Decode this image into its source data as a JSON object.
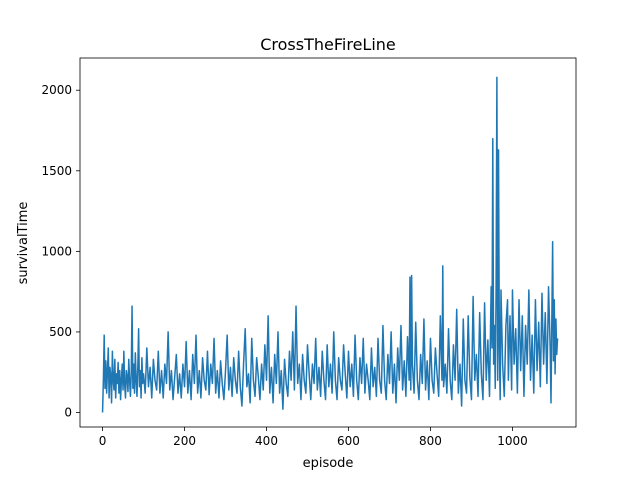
{
  "chart_data": {
    "type": "line",
    "title": "CrossTheFireLine",
    "xlabel": "episode",
    "ylabel": "survivalTime",
    "xlim": [
      -55,
      1155
    ],
    "ylim": [
      -90,
      2200
    ],
    "xticks": [
      0,
      200,
      400,
      600,
      800,
      1000
    ],
    "yticks": [
      0,
      500,
      1000,
      1500,
      2000
    ],
    "grid": false,
    "legend": "none",
    "series": [
      {
        "color": "#1f77b4",
        "points": [
          [
            0,
            0
          ],
          [
            2,
            200
          ],
          [
            4,
            480
          ],
          [
            6,
            150
          ],
          [
            8,
            320
          ],
          [
            10,
            120
          ],
          [
            12,
            260
          ],
          [
            14,
            400
          ],
          [
            16,
            90
          ],
          [
            18,
            280
          ],
          [
            20,
            230
          ],
          [
            22,
            60
          ],
          [
            24,
            380
          ],
          [
            26,
            200
          ],
          [
            28,
            140
          ],
          [
            30,
            330
          ],
          [
            32,
            90
          ],
          [
            34,
            240
          ],
          [
            36,
            180
          ],
          [
            38,
            310
          ],
          [
            40,
            120
          ],
          [
            42,
            260
          ],
          [
            44,
            80
          ],
          [
            46,
            200
          ],
          [
            48,
            300
          ],
          [
            50,
            140
          ],
          [
            52,
            380
          ],
          [
            54,
            170
          ],
          [
            56,
            90
          ],
          [
            58,
            260
          ],
          [
            60,
            220
          ],
          [
            62,
            130
          ],
          [
            64,
            330
          ],
          [
            66,
            200
          ],
          [
            68,
            100
          ],
          [
            70,
            240
          ],
          [
            72,
            660
          ],
          [
            74,
            150
          ],
          [
            76,
            300
          ],
          [
            78,
            120
          ],
          [
            80,
            370
          ],
          [
            82,
            200
          ],
          [
            84,
            100
          ],
          [
            86,
            280
          ],
          [
            88,
            520
          ],
          [
            90,
            160
          ],
          [
            92,
            260
          ],
          [
            94,
            90
          ],
          [
            96,
            340
          ],
          [
            98,
            180
          ],
          [
            100,
            240
          ],
          [
            104,
            120
          ],
          [
            108,
            400
          ],
          [
            112,
            160
          ],
          [
            116,
            280
          ],
          [
            120,
            90
          ],
          [
            124,
            330
          ],
          [
            128,
            200
          ],
          [
            132,
            140
          ],
          [
            136,
            380
          ],
          [
            140,
            120
          ],
          [
            144,
            260
          ],
          [
            148,
            90
          ],
          [
            152,
            300
          ],
          [
            156,
            180
          ],
          [
            160,
            500
          ],
          [
            164,
            140
          ],
          [
            168,
            260
          ],
          [
            172,
            80
          ],
          [
            176,
            220
          ],
          [
            180,
            360
          ],
          [
            184,
            120
          ],
          [
            188,
            240
          ],
          [
            192,
            90
          ],
          [
            196,
            300
          ],
          [
            200,
            160
          ],
          [
            204,
            440
          ],
          [
            208,
            120
          ],
          [
            212,
            260
          ],
          [
            216,
            80
          ],
          [
            220,
            360
          ],
          [
            224,
            180
          ],
          [
            228,
            480
          ],
          [
            232,
            120
          ],
          [
            236,
            260
          ],
          [
            240,
            90
          ],
          [
            244,
            340
          ],
          [
            248,
            200
          ],
          [
            252,
            140
          ],
          [
            256,
            380
          ],
          [
            260,
            110
          ],
          [
            264,
            300
          ],
          [
            268,
            180
          ],
          [
            272,
            460
          ],
          [
            276,
            120
          ],
          [
            280,
            260
          ],
          [
            284,
            90
          ],
          [
            288,
            320
          ],
          [
            292,
            180
          ],
          [
            296,
            80
          ],
          [
            300,
            260
          ],
          [
            304,
            480
          ],
          [
            308,
            140
          ],
          [
            312,
            280
          ],
          [
            316,
            100
          ],
          [
            320,
            340
          ],
          [
            324,
            200
          ],
          [
            328,
            120
          ],
          [
            332,
            380
          ],
          [
            336,
            160
          ],
          [
            340,
            40
          ],
          [
            344,
            300
          ],
          [
            348,
            520
          ],
          [
            352,
            160
          ],
          [
            356,
            240
          ],
          [
            360,
            60
          ],
          [
            364,
            460
          ],
          [
            368,
            200
          ],
          [
            372,
            100
          ],
          [
            376,
            340
          ],
          [
            380,
            220
          ],
          [
            384,
            80
          ],
          [
            388,
            300
          ],
          [
            392,
            140
          ],
          [
            396,
            420
          ],
          [
            400,
            200
          ],
          [
            404,
            600
          ],
          [
            408,
            120
          ],
          [
            412,
            280
          ],
          [
            416,
            60
          ],
          [
            420,
            360
          ],
          [
            424,
            180
          ],
          [
            428,
            500
          ],
          [
            432,
            120
          ],
          [
            436,
            260
          ],
          [
            440,
            20
          ],
          [
            444,
            330
          ],
          [
            448,
            180
          ],
          [
            452,
            100
          ],
          [
            456,
            380
          ],
          [
            460,
            200
          ],
          [
            464,
            500
          ],
          [
            468,
            140
          ],
          [
            472,
            660
          ],
          [
            476,
            180
          ],
          [
            480,
            300
          ],
          [
            484,
            80
          ],
          [
            488,
            360
          ],
          [
            492,
            200
          ],
          [
            496,
            120
          ],
          [
            500,
            420
          ],
          [
            504,
            240
          ],
          [
            508,
            80
          ],
          [
            512,
            300
          ],
          [
            516,
            180
          ],
          [
            520,
            460
          ],
          [
            524,
            140
          ],
          [
            528,
            280
          ],
          [
            532,
            100
          ],
          [
            536,
            380
          ],
          [
            540,
            200
          ],
          [
            544,
            80
          ],
          [
            548,
            420
          ],
          [
            552,
            160
          ],
          [
            556,
            300
          ],
          [
            560,
            120
          ],
          [
            564,
            500
          ],
          [
            568,
            200
          ],
          [
            572,
            80
          ],
          [
            576,
            340
          ],
          [
            580,
            200
          ],
          [
            584,
            140
          ],
          [
            588,
            420
          ],
          [
            592,
            240
          ],
          [
            596,
            90
          ],
          [
            600,
            380
          ],
          [
            604,
            160
          ],
          [
            608,
            300
          ],
          [
            612,
            100
          ],
          [
            616,
            480
          ],
          [
            620,
            200
          ],
          [
            624,
            80
          ],
          [
            628,
            340
          ],
          [
            632,
            180
          ],
          [
            636,
            460
          ],
          [
            640,
            120
          ],
          [
            644,
            300
          ],
          [
            648,
            200
          ],
          [
            652,
            80
          ],
          [
            656,
            400
          ],
          [
            660,
            160
          ],
          [
            664,
            280
          ],
          [
            668,
            100
          ],
          [
            672,
            460
          ],
          [
            676,
            200
          ],
          [
            680,
            120
          ],
          [
            684,
            540
          ],
          [
            688,
            200
          ],
          [
            692,
            80
          ],
          [
            696,
            360
          ],
          [
            700,
            180
          ],
          [
            704,
            500
          ],
          [
            708,
            120
          ],
          [
            712,
            300
          ],
          [
            716,
            60
          ],
          [
            720,
            400
          ],
          [
            724,
            200
          ],
          [
            728,
            540
          ],
          [
            732,
            140
          ],
          [
            736,
            320
          ],
          [
            740,
            100
          ],
          [
            744,
            470
          ],
          [
            748,
            200
          ],
          [
            750,
            840
          ],
          [
            752,
            140
          ],
          [
            754,
            850
          ],
          [
            756,
            300
          ],
          [
            760,
            120
          ],
          [
            764,
            560
          ],
          [
            768,
            200
          ],
          [
            772,
            80
          ],
          [
            776,
            360
          ],
          [
            780,
            180
          ],
          [
            784,
            580
          ],
          [
            788,
            140
          ],
          [
            792,
            320
          ],
          [
            796,
            80
          ],
          [
            800,
            460
          ],
          [
            804,
            200
          ],
          [
            808,
            120
          ],
          [
            812,
            400
          ],
          [
            816,
            240
          ],
          [
            820,
            100
          ],
          [
            824,
            600
          ],
          [
            828,
            200
          ],
          [
            830,
            910
          ],
          [
            832,
            160
          ],
          [
            836,
            300
          ],
          [
            840,
            120
          ],
          [
            844,
            520
          ],
          [
            848,
            200
          ],
          [
            852,
            80
          ],
          [
            856,
            420
          ],
          [
            860,
            200
          ],
          [
            864,
            640
          ],
          [
            868,
            120
          ],
          [
            872,
            300
          ],
          [
            876,
            40
          ],
          [
            880,
            580
          ],
          [
            884,
            200
          ],
          [
            888,
            120
          ],
          [
            892,
            600
          ],
          [
            896,
            220
          ],
          [
            900,
            80
          ],
          [
            904,
            720
          ],
          [
            908,
            200
          ],
          [
            912,
            360
          ],
          [
            916,
            100
          ],
          [
            920,
            620
          ],
          [
            924,
            240
          ],
          [
            928,
            80
          ],
          [
            932,
            680
          ],
          [
            936,
            200
          ],
          [
            940,
            450
          ],
          [
            944,
            100
          ],
          [
            948,
            780
          ],
          [
            950,
            400
          ],
          [
            952,
            1700
          ],
          [
            954,
            300
          ],
          [
            956,
            540
          ],
          [
            958,
            150
          ],
          [
            960,
            740
          ],
          [
            962,
            2080
          ],
          [
            964,
            200
          ],
          [
            966,
            1630
          ],
          [
            968,
            400
          ],
          [
            970,
            80
          ],
          [
            972,
            760
          ],
          [
            976,
            300
          ],
          [
            980,
            100
          ],
          [
            984,
            540
          ],
          [
            988,
            700
          ],
          [
            990,
            200
          ],
          [
            994,
            600
          ],
          [
            998,
            140
          ],
          [
            1000,
            760
          ],
          [
            1004,
            300
          ],
          [
            1008,
            520
          ],
          [
            1012,
            120
          ],
          [
            1016,
            700
          ],
          [
            1020,
            260
          ],
          [
            1024,
            600
          ],
          [
            1028,
            100
          ],
          [
            1032,
            540
          ],
          [
            1036,
            300
          ],
          [
            1040,
            760
          ],
          [
            1044,
            200
          ],
          [
            1048,
            480
          ],
          [
            1052,
            120
          ],
          [
            1056,
            700
          ],
          [
            1060,
            260
          ],
          [
            1064,
            560
          ],
          [
            1068,
            160
          ],
          [
            1072,
            740
          ],
          [
            1076,
            300
          ],
          [
            1080,
            620
          ],
          [
            1084,
            180
          ],
          [
            1088,
            780
          ],
          [
            1092,
            400
          ],
          [
            1094,
            60
          ],
          [
            1096,
            560
          ],
          [
            1098,
            1060
          ],
          [
            1100,
            320
          ],
          [
            1102,
            700
          ],
          [
            1104,
            240
          ],
          [
            1106,
            580
          ],
          [
            1108,
            360
          ],
          [
            1110,
            460
          ]
        ]
      }
    ]
  }
}
